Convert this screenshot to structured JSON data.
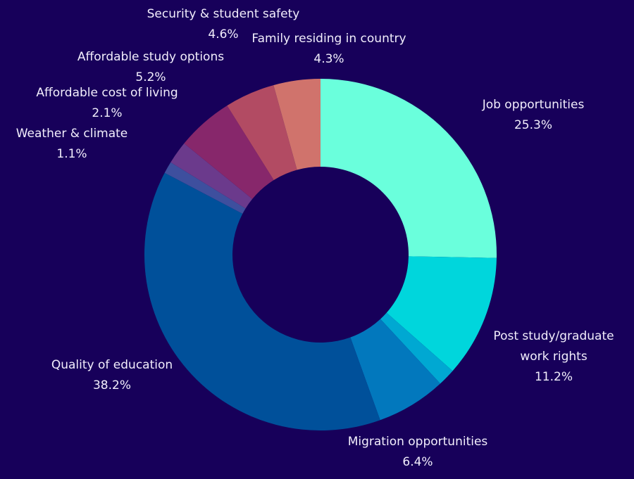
{
  "chart_data": {
    "type": "pie",
    "donut": true,
    "title": "",
    "slices": [
      {
        "label": "Job opportunities",
        "value": 25.3,
        "value_label": "25.3%",
        "color": "#6affdc"
      },
      {
        "label": "Post study/graduate work rights",
        "label_lines": [
          "Post study/graduate",
          "work rights"
        ],
        "value": 11.2,
        "value_label": "11.2%",
        "color": "#00d6dc"
      },
      {
        "label": "",
        "value": 1.6,
        "value_label": "",
        "color": "#00a8d2"
      },
      {
        "label": "Migration opportunities",
        "value": 6.4,
        "value_label": "6.4%",
        "color": "#0278bd"
      },
      {
        "label": "Quality of education",
        "value": 38.2,
        "value_label": "38.2%",
        "color": "#00509a"
      },
      {
        "label": "Weather & climate",
        "value": 1.1,
        "value_label": "1.1%",
        "color": "#3e4f9e"
      },
      {
        "label": "Affordable cost of living",
        "value": 2.1,
        "value_label": "2.1%",
        "color": "#6b3a8c"
      },
      {
        "label": "Affordable study options",
        "value": 5.2,
        "value_label": "5.2%",
        "color": "#87276b"
      },
      {
        "label": "Security & student safety",
        "value": 4.6,
        "value_label": "4.6%",
        "color": "#b24b63"
      },
      {
        "label": "Family residing in country",
        "value": 4.3,
        "value_label": "4.3%",
        "color": "#d0736c"
      }
    ]
  },
  "background": "#17005a"
}
